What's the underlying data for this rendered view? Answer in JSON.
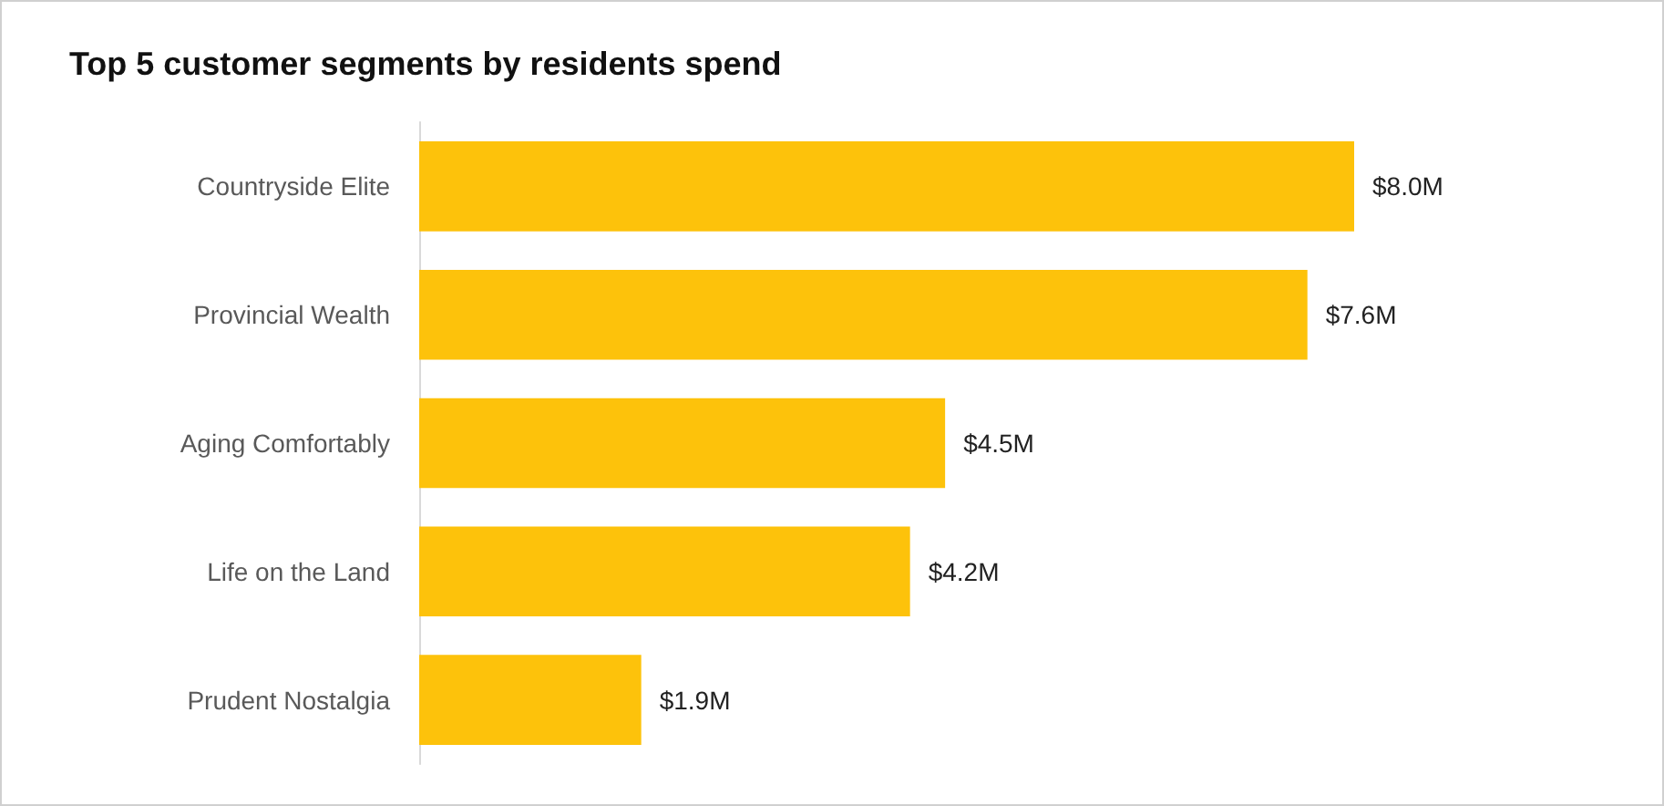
{
  "chart_data": {
    "type": "bar",
    "title": "Top 5 customer segments by residents spend",
    "orientation": "horizontal",
    "categories": [
      "Countryside Elite",
      "Provincial Wealth",
      "Aging Comfortably",
      "Life on the Land",
      "Prudent Nostalgia"
    ],
    "values": [
      8.0,
      7.6,
      4.5,
      4.2,
      1.9
    ],
    "value_labels": [
      "$8.0M",
      "$7.6M",
      "$4.5M",
      "$4.2M",
      "$1.9M"
    ],
    "color": "#fdc20b"
  }
}
